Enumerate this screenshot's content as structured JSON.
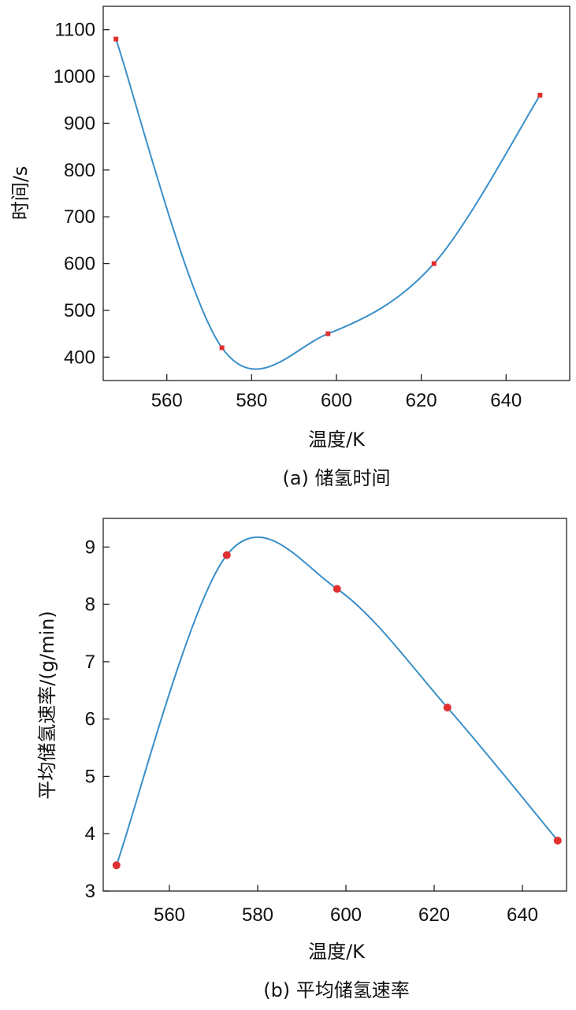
{
  "chart_data": [
    {
      "type": "line",
      "caption": "(a) 储氢时间",
      "xlabel": "温度/K",
      "ylabel": "时间/s",
      "xlim": [
        545,
        655
      ],
      "ylim": [
        350,
        1150
      ],
      "xticks": [
        560,
        580,
        600,
        620,
        640
      ],
      "yticks": [
        400,
        500,
        600,
        700,
        800,
        900,
        1000,
        1100
      ],
      "x": [
        548,
        573,
        598,
        623,
        648
      ],
      "y": [
        1080,
        420,
        450,
        600,
        960
      ],
      "marker": "square",
      "line_color": "#3a8fc8",
      "marker_color": "#e03030",
      "grid": false
    },
    {
      "type": "line",
      "caption": "(b) 平均储氢速率",
      "xlabel": "温度/K",
      "ylabel": "平均储氢速率/(g/min)",
      "xlim": [
        545,
        650
      ],
      "ylim": [
        3,
        9.5
      ],
      "xticks": [
        560,
        580,
        600,
        620,
        640
      ],
      "yticks": [
        3,
        4,
        5,
        6,
        7,
        8,
        9
      ],
      "x": [
        548,
        573,
        598,
        623,
        648
      ],
      "y": [
        3.45,
        8.86,
        8.27,
        6.2,
        3.88
      ],
      "marker": "circle",
      "line_color": "#3a8fc8",
      "marker_color": "#e03030",
      "grid": false
    }
  ]
}
